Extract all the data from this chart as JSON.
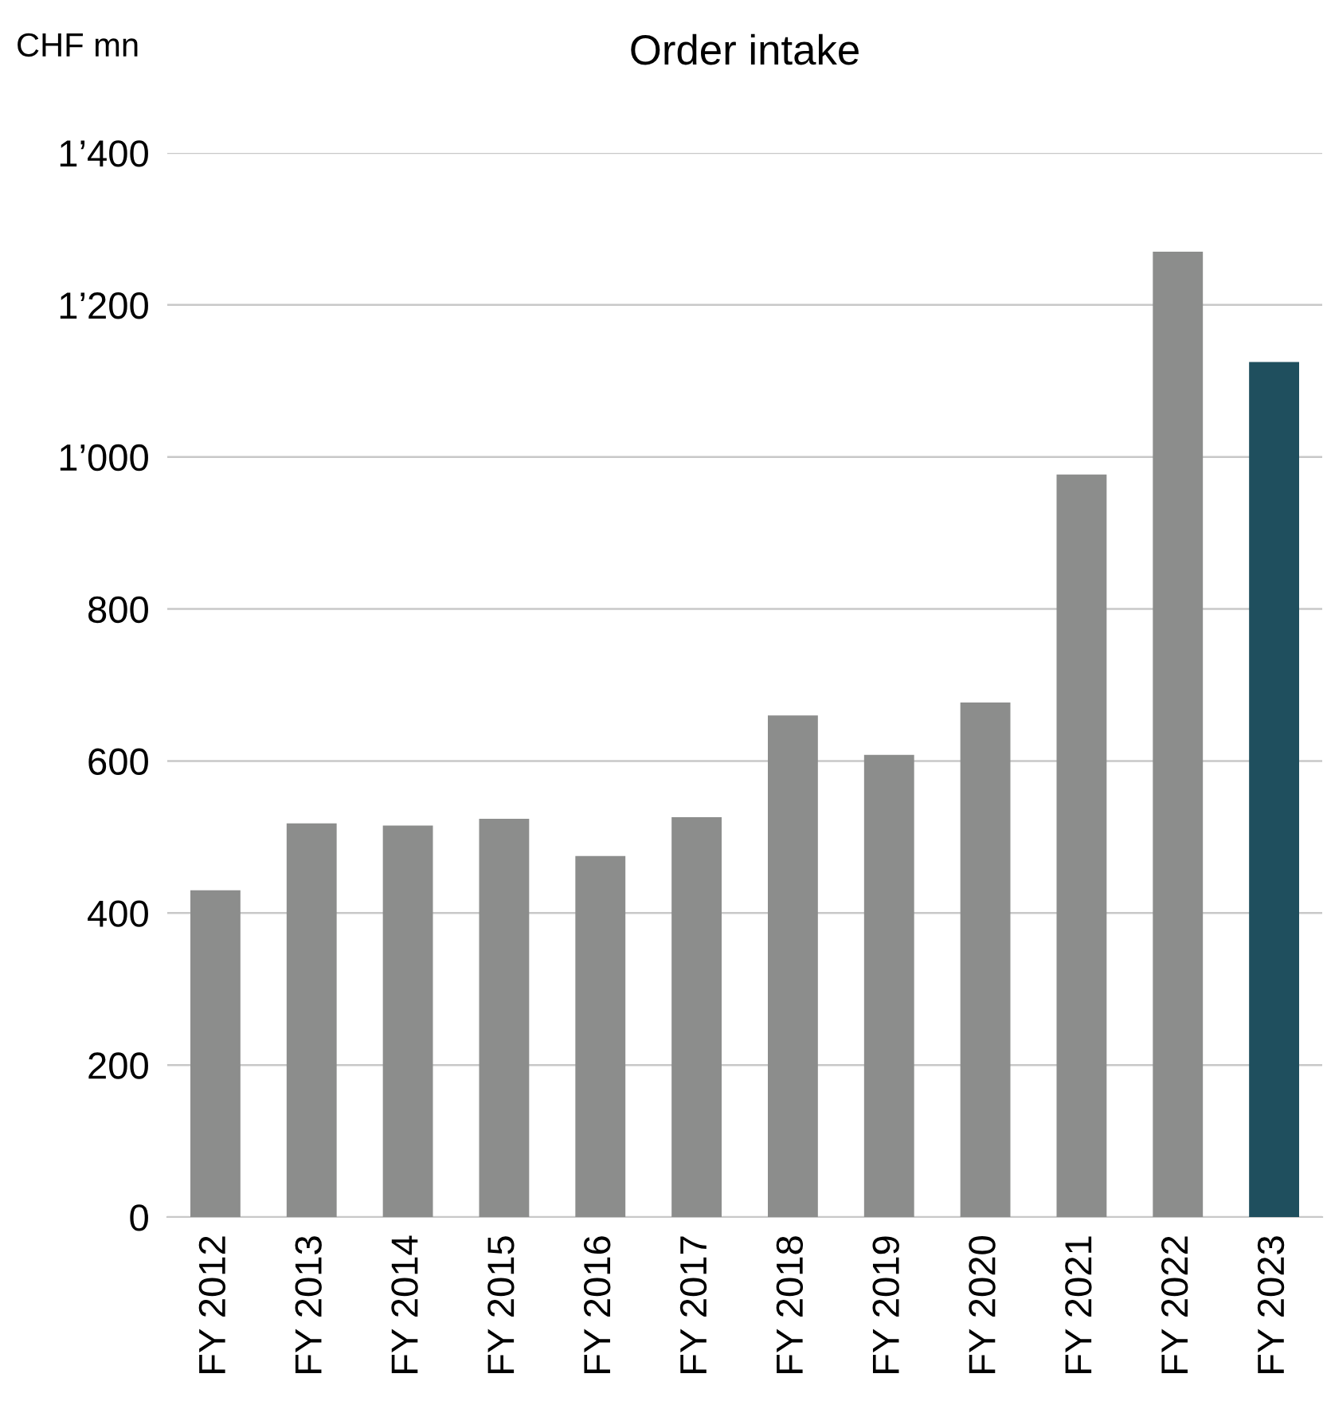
{
  "chart_data": {
    "type": "bar",
    "title": "Order intake",
    "ylabel": "CHF mn",
    "categories": [
      "FY 2012",
      "FY 2013",
      "FY 2014",
      "FY 2015",
      "FY 2016",
      "FY 2017",
      "FY 2018",
      "FY 2019",
      "FY 2020",
      "FY 2021",
      "FY 2022",
      "FY 2023"
    ],
    "values": [
      430,
      518,
      515,
      524,
      475,
      526,
      660,
      608,
      677,
      977,
      1270,
      1125
    ],
    "colors": [
      "#8c8d8c",
      "#8c8d8c",
      "#8c8d8c",
      "#8c8d8c",
      "#8c8d8c",
      "#8c8d8c",
      "#8c8d8c",
      "#8c8d8c",
      "#8c8d8c",
      "#8c8d8c",
      "#8c8d8c",
      "#1f4f5e"
    ],
    "ylim": [
      0,
      1400
    ],
    "yticks": [
      0,
      200,
      400,
      600,
      800,
      {
        "value": 1000,
        "label": "1’000"
      },
      {
        "value": 1200,
        "label": "1’200"
      },
      {
        "value": 1400,
        "label": "1’400"
      }
    ],
    "grid": "y",
    "legend": false
  }
}
